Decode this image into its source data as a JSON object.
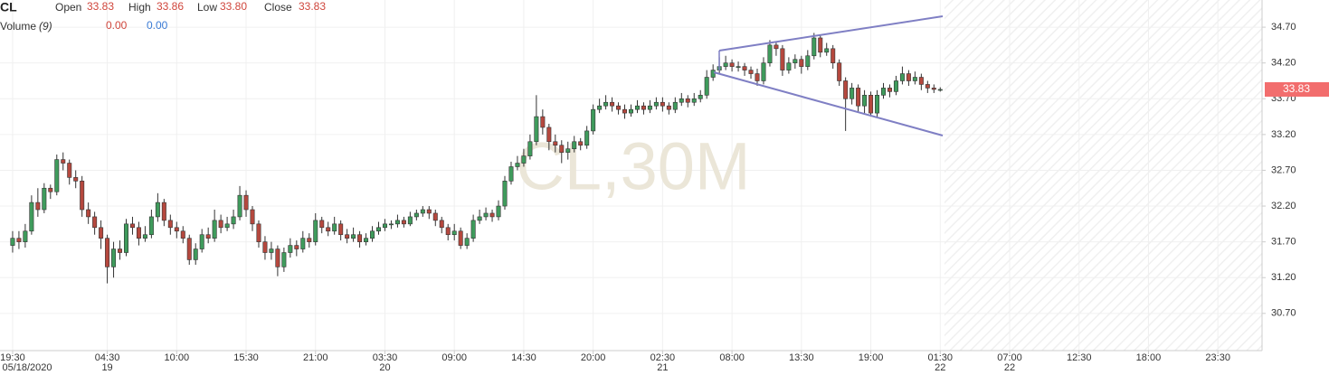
{
  "header": {
    "symbol": "CL",
    "open_label": "Open",
    "open": "33.83",
    "high_label": "High",
    "high": "33.86",
    "low_label": "Low",
    "low": "33.80",
    "close_label": "Close",
    "close": "33.83",
    "volume_label": "Volume",
    "volume_period": "(9)",
    "volume_value_1": "0.00",
    "volume_value_2": "0.00"
  },
  "chart_data": {
    "type": "candlestick",
    "watermark": "CL,30M",
    "grid": true,
    "up_color": "#3f9b5c",
    "down_color": "#b5483e",
    "x": [
      0,
      1,
      2,
      3,
      4,
      5,
      6,
      7,
      8,
      9,
      10,
      11,
      12,
      13,
      14,
      15,
      16,
      17,
      18,
      19,
      20,
      21,
      22,
      23,
      24,
      25,
      26,
      27,
      28,
      29,
      30,
      31,
      32,
      33,
      34,
      35,
      36,
      37,
      38,
      39,
      40,
      41,
      42,
      43,
      44,
      45,
      46,
      47,
      48,
      49,
      50,
      51,
      52,
      53,
      54,
      55,
      56,
      57,
      58,
      59,
      60,
      61,
      62,
      63,
      64,
      65,
      66,
      67,
      68,
      69,
      70,
      71,
      72,
      73,
      74,
      75,
      76,
      77,
      78,
      79,
      80,
      81,
      82,
      83,
      84,
      85,
      86,
      87,
      88,
      89,
      90,
      91,
      92,
      93,
      94,
      95,
      96,
      97,
      98,
      99,
      100,
      101,
      102,
      103,
      104,
      105,
      106,
      107,
      108,
      109,
      110,
      111,
      112,
      113,
      114,
      115,
      116,
      117,
      118,
      119,
      120,
      121,
      122,
      123,
      124,
      125,
      126,
      127,
      128,
      129,
      130,
      131,
      132,
      133,
      134,
      135,
      136,
      137,
      138,
      139,
      140,
      141,
      142,
      143,
      144,
      145,
      146,
      147
    ],
    "open": [
      31.65,
      31.75,
      31.7,
      31.85,
      32.25,
      32.15,
      32.45,
      32.4,
      32.85,
      32.8,
      32.6,
      32.55,
      32.15,
      32.05,
      31.9,
      31.75,
      31.35,
      31.6,
      31.55,
      31.95,
      31.9,
      31.75,
      31.8,
      32.05,
      32.25,
      32.0,
      31.9,
      31.85,
      31.75,
      31.45,
      31.6,
      31.8,
      31.75,
      32.0,
      31.9,
      31.95,
      32.05,
      32.35,
      32.15,
      31.95,
      31.7,
      31.55,
      31.6,
      31.35,
      31.55,
      31.65,
      31.6,
      31.75,
      31.7,
      32.0,
      31.9,
      31.85,
      31.95,
      31.8,
      31.75,
      31.8,
      31.7,
      31.75,
      31.85,
      31.9,
      31.95,
      31.95,
      32.0,
      31.95,
      32.05,
      32.1,
      32.15,
      32.1,
      32.0,
      31.9,
      31.8,
      31.85,
      31.65,
      31.75,
      32.0,
      32.05,
      32.1,
      32.05,
      32.2,
      32.55,
      32.75,
      32.8,
      32.9,
      33.1,
      33.45,
      33.3,
      33.1,
      33.05,
      32.95,
      33.0,
      33.1,
      33.05,
      33.25,
      33.55,
      33.6,
      33.65,
      33.6,
      33.55,
      33.5,
      33.55,
      33.6,
      33.55,
      33.6,
      33.65,
      33.6,
      33.55,
      33.65,
      33.7,
      33.65,
      33.7,
      33.75,
      34.0,
      34.1,
      34.15,
      34.2,
      34.15,
      34.15,
      34.1,
      34.05,
      33.95,
      34.2,
      34.45,
      34.4,
      34.1,
      34.2,
      34.25,
      34.15,
      34.3,
      34.55,
      34.35,
      34.4,
      34.2,
      33.95,
      33.7,
      33.85,
      33.6,
      33.75,
      33.5,
      33.75,
      33.85,
      33.8,
      33.95,
      34.05,
      33.95,
      34.0,
      33.9,
      33.85,
      33.83
    ],
    "high": [
      31.85,
      31.85,
      31.95,
      32.35,
      32.45,
      32.52,
      32.5,
      32.92,
      32.95,
      32.85,
      32.7,
      32.62,
      32.25,
      32.12,
      32.0,
      31.8,
      31.7,
      31.72,
      32.02,
      32.05,
      31.98,
      31.92,
      32.15,
      32.38,
      32.3,
      32.08,
      31.98,
      31.92,
      31.8,
      31.68,
      31.88,
      31.9,
      32.15,
      32.08,
      32.05,
      32.15,
      32.48,
      32.42,
      32.2,
      32.0,
      31.78,
      31.7,
      31.65,
      31.62,
      31.75,
      31.72,
      31.85,
      31.82,
      32.1,
      32.05,
      31.98,
      32.05,
      32.0,
      31.88,
      31.9,
      31.85,
      31.82,
      31.92,
      31.98,
      32.02,
      32.0,
      32.08,
      32.05,
      32.12,
      32.15,
      32.2,
      32.2,
      32.15,
      32.05,
      31.95,
      31.95,
      31.9,
      31.82,
      32.08,
      32.15,
      32.18,
      32.15,
      32.28,
      32.62,
      32.82,
      32.9,
      33.0,
      33.2,
      33.75,
      33.55,
      33.35,
      33.2,
      33.12,
      33.1,
      33.18,
      33.15,
      33.32,
      33.62,
      33.7,
      33.75,
      33.72,
      33.65,
      33.62,
      33.62,
      33.68,
      33.65,
      33.68,
      33.72,
      33.72,
      33.65,
      33.72,
      33.78,
      33.75,
      33.78,
      33.82,
      34.1,
      34.18,
      34.28,
      34.3,
      34.25,
      34.22,
      34.2,
      34.15,
      34.12,
      34.28,
      34.52,
      34.5,
      34.45,
      34.28,
      34.32,
      34.3,
      34.38,
      34.62,
      34.6,
      34.48,
      34.45,
      34.25,
      34.0,
      33.92,
      33.9,
      33.82,
      33.8,
      33.82,
      33.92,
      33.9,
      34.02,
      34.15,
      34.1,
      34.08,
      34.05,
      33.95,
      33.9,
      33.86
    ],
    "low": [
      31.55,
      31.6,
      31.62,
      31.8,
      32.05,
      32.1,
      32.3,
      32.35,
      32.7,
      32.5,
      32.45,
      32.05,
      31.95,
      31.8,
      31.6,
      31.12,
      31.2,
      31.45,
      31.5,
      31.8,
      31.65,
      31.7,
      31.75,
      31.98,
      31.92,
      31.8,
      31.75,
      31.68,
      31.38,
      31.38,
      31.55,
      31.68,
      31.7,
      31.82,
      31.85,
      31.88,
      32.0,
      32.05,
      31.85,
      31.62,
      31.45,
      31.45,
      31.22,
      31.28,
      31.48,
      31.5,
      31.55,
      31.62,
      31.65,
      31.82,
      31.78,
      31.8,
      31.72,
      31.68,
      31.7,
      31.62,
      31.65,
      31.7,
      31.8,
      31.85,
      31.88,
      31.9,
      31.9,
      31.92,
      32.0,
      32.05,
      32.02,
      31.92,
      31.82,
      31.72,
      31.72,
      31.6,
      31.6,
      31.7,
      31.95,
      32.0,
      31.98,
      32.0,
      32.15,
      32.5,
      32.7,
      32.75,
      32.85,
      33.05,
      33.2,
      32.98,
      32.95,
      32.8,
      32.85,
      32.95,
      32.98,
      33.0,
      33.2,
      33.5,
      33.55,
      33.52,
      33.48,
      33.42,
      33.45,
      33.5,
      33.48,
      33.5,
      33.55,
      33.52,
      33.48,
      33.5,
      33.6,
      33.58,
      33.6,
      33.65,
      33.7,
      33.95,
      34.05,
      34.1,
      34.08,
      34.08,
      34.02,
      33.98,
      33.88,
      33.9,
      34.15,
      34.3,
      34.02,
      34.05,
      34.12,
      34.05,
      34.1,
      34.25,
      34.28,
      34.3,
      34.12,
      33.88,
      33.25,
      33.62,
      33.52,
      33.48,
      33.45,
      33.45,
      33.7,
      33.72,
      33.75,
      33.9,
      33.88,
      33.9,
      33.82,
      33.78,
      33.78,
      33.8
    ],
    "close": [
      31.75,
      31.7,
      31.85,
      32.25,
      32.15,
      32.45,
      32.4,
      32.85,
      32.8,
      32.6,
      32.55,
      32.15,
      32.05,
      31.9,
      31.75,
      31.35,
      31.6,
      31.55,
      31.95,
      31.9,
      31.75,
      31.8,
      32.05,
      32.25,
      32.0,
      31.9,
      31.85,
      31.75,
      31.45,
      31.6,
      31.8,
      31.75,
      32.0,
      31.9,
      31.95,
      32.05,
      32.35,
      32.15,
      31.95,
      31.7,
      31.55,
      31.6,
      31.35,
      31.55,
      31.65,
      31.6,
      31.75,
      31.7,
      32.0,
      31.9,
      31.85,
      31.95,
      31.8,
      31.75,
      31.8,
      31.7,
      31.75,
      31.85,
      31.9,
      31.95,
      31.95,
      32.0,
      31.95,
      32.05,
      32.1,
      32.15,
      32.1,
      32.0,
      31.9,
      31.8,
      31.85,
      31.65,
      31.75,
      32.0,
      32.05,
      32.1,
      32.05,
      32.2,
      32.55,
      32.75,
      32.8,
      32.9,
      33.1,
      33.45,
      33.3,
      33.1,
      33.05,
      32.95,
      33.0,
      33.1,
      33.05,
      33.25,
      33.55,
      33.6,
      33.65,
      33.6,
      33.55,
      33.5,
      33.55,
      33.6,
      33.55,
      33.6,
      33.65,
      33.6,
      33.55,
      33.65,
      33.7,
      33.65,
      33.7,
      33.75,
      34.0,
      34.1,
      34.15,
      34.2,
      34.15,
      34.15,
      34.1,
      34.05,
      33.95,
      34.2,
      34.45,
      34.4,
      34.1,
      34.2,
      34.25,
      34.15,
      34.3,
      34.55,
      34.35,
      34.4,
      34.2,
      33.95,
      33.7,
      33.85,
      33.6,
      33.75,
      33.5,
      33.75,
      33.85,
      33.8,
      33.95,
      34.05,
      33.95,
      34.0,
      33.9,
      33.85,
      33.83,
      33.83
    ],
    "xlim": [
      -2,
      198
    ],
    "xticks": [
      {
        "value": 0,
        "label": "19:30"
      },
      {
        "value": 15,
        "label": "04:30"
      },
      {
        "value": 26,
        "label": "10:00"
      },
      {
        "value": 37,
        "label": "15:30"
      },
      {
        "value": 48,
        "label": "21:00"
      },
      {
        "value": 59,
        "label": "03:30"
      },
      {
        "value": 70,
        "label": "09:00"
      },
      {
        "value": 81,
        "label": "14:30"
      },
      {
        "value": 92,
        "label": "20:00"
      },
      {
        "value": 103,
        "label": "02:30"
      },
      {
        "value": 114,
        "label": "08:00"
      },
      {
        "value": 125,
        "label": "13:30"
      },
      {
        "value": 136,
        "label": "19:00"
      },
      {
        "value": 147,
        "label": "01:30"
      },
      {
        "value": 158,
        "label": "07:00"
      },
      {
        "value": 169,
        "label": "12:30"
      },
      {
        "value": 180,
        "label": "18:00"
      },
      {
        "value": 191,
        "label": "23:30"
      }
    ],
    "date_ticks": [
      {
        "value": 0,
        "label": "05/18/2020"
      },
      {
        "value": 15,
        "label": "19"
      },
      {
        "value": 59,
        "label": "20"
      },
      {
        "value": 103,
        "label": "21"
      },
      {
        "value": 147,
        "label": "22"
      },
      {
        "value": 158,
        "label": "22"
      }
    ],
    "ylim": [
      30.18,
      35.08
    ],
    "yticks": [
      {
        "value": 30.7,
        "label": "30.70"
      },
      {
        "value": 31.2,
        "label": "31.20"
      },
      {
        "value": 31.7,
        "label": "31.70"
      },
      {
        "value": 32.2,
        "label": "32.20"
      },
      {
        "value": 32.7,
        "label": "32.70"
      },
      {
        "value": 33.2,
        "label": "33.20"
      },
      {
        "value": 33.7,
        "label": "33.70"
      },
      {
        "value": 34.2,
        "label": "34.20"
      },
      {
        "value": 34.7,
        "label": "34.70"
      }
    ],
    "last_price": 33.83,
    "last_price_color": "#f26d6d"
  }
}
